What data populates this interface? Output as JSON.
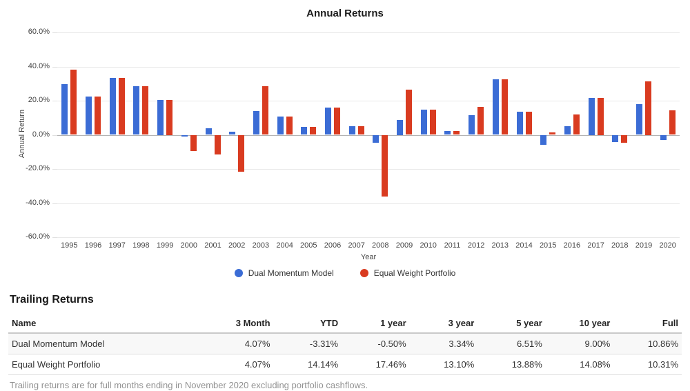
{
  "chart_data": {
    "type": "bar",
    "title": "Annual Returns",
    "xlabel": "Year",
    "ylabel": "Annual Return",
    "categories": [
      1995,
      1996,
      1997,
      1998,
      1999,
      2000,
      2001,
      2002,
      2003,
      2004,
      2005,
      2006,
      2007,
      2008,
      2009,
      2010,
      2011,
      2012,
      2013,
      2014,
      2015,
      2016,
      2017,
      2018,
      2019,
      2020
    ],
    "series": [
      {
        "name": "Dual Momentum Model",
        "color": "#3b6cd5",
        "values": [
          29.6,
          22.5,
          33.4,
          28.6,
          20.4,
          -0.8,
          3.7,
          1.7,
          13.8,
          10.8,
          4.8,
          16.0,
          5.1,
          -4.7,
          8.7,
          14.9,
          2.4,
          11.4,
          32.6,
          13.6,
          -5.8,
          5.1,
          21.8,
          -4.3,
          18.1,
          -2.9
        ]
      },
      {
        "name": "Equal Weight Portfolio",
        "color": "#d93b20",
        "values": [
          38.3,
          22.5,
          33.4,
          28.6,
          20.4,
          -9.4,
          -11.5,
          -21.5,
          28.4,
          10.8,
          4.8,
          16.0,
          5.1,
          -36.3,
          26.4,
          14.9,
          2.2,
          16.4,
          32.6,
          13.6,
          1.5,
          12.1,
          21.8,
          -4.8,
          31.5,
          14.2
        ]
      }
    ],
    "ylim": [
      -60,
      60
    ],
    "yticks": [
      60,
      40,
      20,
      0,
      -20,
      -40,
      -60
    ],
    "ytick_suffix": "%",
    "grid": true,
    "legend_position": "bottom"
  },
  "table": {
    "title": "Trailing Returns",
    "columns": [
      "Name",
      "3 Month",
      "YTD",
      "1 year",
      "3 year",
      "5 year",
      "10 year",
      "Full"
    ],
    "rows": [
      {
        "name": "Dual Momentum Model",
        "values": [
          "4.07%",
          "-3.31%",
          "-0.50%",
          "3.34%",
          "6.51%",
          "9.00%",
          "10.86%"
        ]
      },
      {
        "name": "Equal Weight Portfolio",
        "values": [
          "4.07%",
          "14.14%",
          "17.46%",
          "13.10%",
          "13.88%",
          "14.08%",
          "10.31%"
        ]
      }
    ],
    "footnote": "Trailing returns are for full months ending in November 2020 excluding portfolio cashflows."
  }
}
